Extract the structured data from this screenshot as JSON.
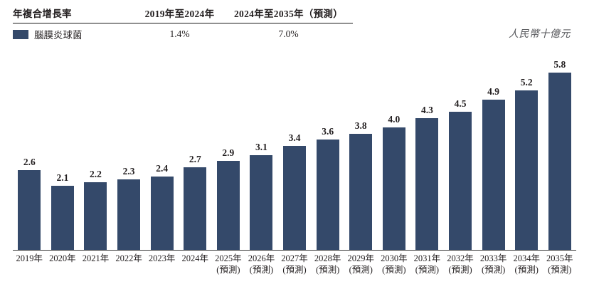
{
  "header": {
    "row_label": "年複合增長率",
    "period1": "2019年至2024年",
    "period2": "2024年至2035年（預測）",
    "legend_label": "腦膜炎球菌",
    "cagr1": "1.4%",
    "cagr2": "7.0%"
  },
  "unit_label": "人民幣十億元",
  "colors": {
    "bar": "#34496a",
    "text": "#231f20",
    "unit_text": "#55565a"
  },
  "chart_data": {
    "type": "bar",
    "title": "",
    "series_name": "腦膜炎球菌",
    "ylabel": "人民幣十億元",
    "xlabel": "",
    "ylim": [
      0,
      6
    ],
    "grid": false,
    "legend_position": "top-left",
    "value_labels": true,
    "categories": [
      "2019年",
      "2020年",
      "2021年",
      "2022年",
      "2023年",
      "2024年",
      "2025年",
      "2026年",
      "2027年",
      "2028年",
      "2029年",
      "2030年",
      "2031年",
      "2032年",
      "2033年",
      "2034年",
      "2035年"
    ],
    "category_notes": [
      "",
      "",
      "",
      "",
      "",
      "",
      "(預測)",
      "(預測)",
      "(預測)",
      "(預測)",
      "(預測)",
      "(預測)",
      "(預測)",
      "(預測)",
      "(預測)",
      "(預測)",
      "(預測)"
    ],
    "values": [
      2.6,
      2.1,
      2.2,
      2.3,
      2.4,
      2.7,
      2.9,
      3.1,
      3.4,
      3.6,
      3.8,
      4.0,
      4.3,
      4.5,
      4.9,
      5.2,
      5.8
    ]
  }
}
